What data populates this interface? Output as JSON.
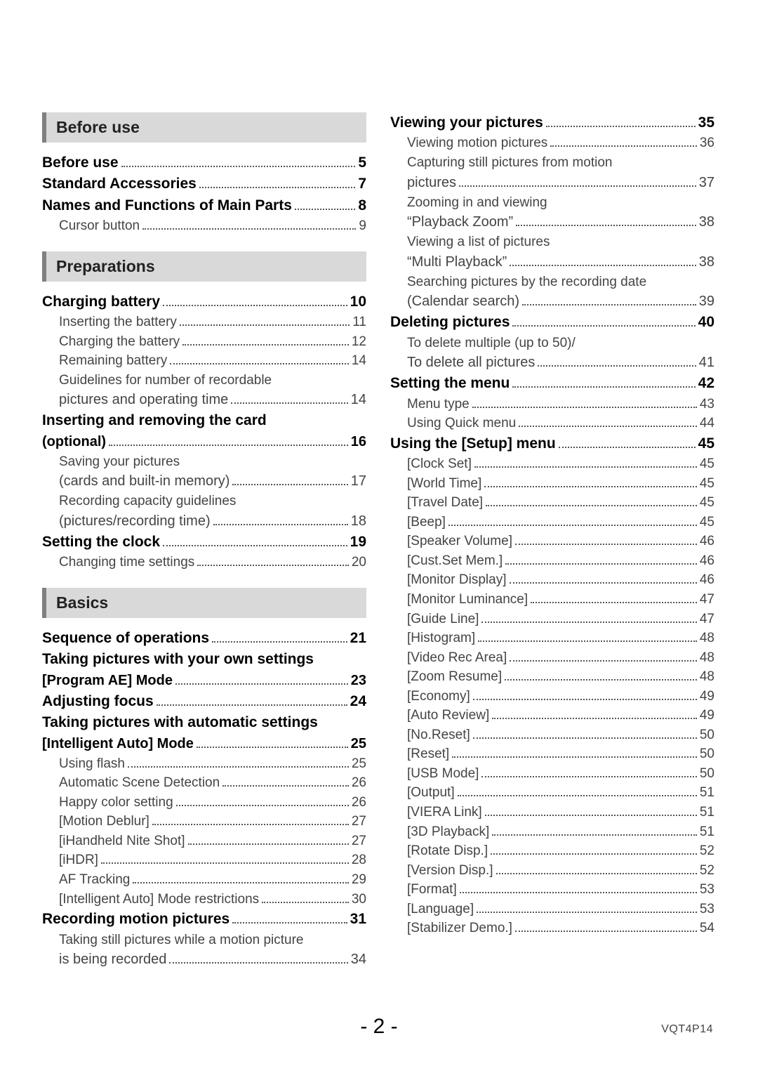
{
  "page_number": "- 2 -",
  "doc_code": "VQT4P14",
  "colors": {
    "section_bg": "#d9d9d9",
    "section_border": "#808080",
    "text": "#000000",
    "subtext": "#444444"
  },
  "columns": [
    {
      "blocks": [
        {
          "type": "header",
          "text": "Before use"
        },
        {
          "type": "major",
          "text": "Before use",
          "page": "5"
        },
        {
          "type": "major",
          "text": "Standard Accessories",
          "page": "7"
        },
        {
          "type": "major",
          "text": "Names and Functions of Main Parts",
          "page": "8"
        },
        {
          "type": "sub",
          "text": "Cursor button",
          "page": "9"
        },
        {
          "type": "header",
          "text": "Preparations"
        },
        {
          "type": "major",
          "text": "Charging battery",
          "page": "10"
        },
        {
          "type": "sub",
          "text": "Inserting the battery",
          "page": "11"
        },
        {
          "type": "sub",
          "text": "Charging the battery",
          "page": "12"
        },
        {
          "type": "sub",
          "text": "Remaining battery",
          "page": "14"
        },
        {
          "type": "sub",
          "text_lines": [
            "Guidelines for number of recordable",
            "pictures and operating time"
          ],
          "page": "14"
        },
        {
          "type": "major",
          "text_lines": [
            "Inserting and removing the card",
            "(optional)"
          ],
          "page": "16"
        },
        {
          "type": "sub",
          "text_lines": [
            "Saving your pictures",
            "(cards and built-in memory)"
          ],
          "page": "17"
        },
        {
          "type": "sub",
          "text_lines": [
            "Recording capacity guidelines",
            "(pictures/recording time)"
          ],
          "page": "18"
        },
        {
          "type": "major",
          "text": "Setting the clock",
          "page": "19"
        },
        {
          "type": "sub",
          "text": "Changing time settings",
          "page": "20"
        },
        {
          "type": "header",
          "text": "Basics"
        },
        {
          "type": "major",
          "text": "Sequence of operations",
          "page": "21"
        },
        {
          "type": "major",
          "text_lines": [
            "Taking pictures with your own settings",
            "[Program AE] Mode"
          ],
          "page": "23"
        },
        {
          "type": "major",
          "text": "Adjusting focus",
          "page": "24"
        },
        {
          "type": "major",
          "text_lines": [
            "Taking pictures with automatic settings",
            "[Intelligent Auto] Mode"
          ],
          "page": "25"
        },
        {
          "type": "sub",
          "text": "Using flash",
          "page": "25"
        },
        {
          "type": "sub",
          "text": "Automatic Scene Detection",
          "page": "26"
        },
        {
          "type": "sub",
          "text": "Happy color setting",
          "page": "26"
        },
        {
          "type": "sub",
          "text": "[Motion Deblur]",
          "page": "27"
        },
        {
          "type": "sub",
          "text": "[iHandheld Nite Shot]",
          "page": "27"
        },
        {
          "type": "sub",
          "text": "[iHDR]",
          "page": "28"
        },
        {
          "type": "sub",
          "text": "AF Tracking",
          "page": "29"
        },
        {
          "type": "sub",
          "text": "[Intelligent Auto] Mode restrictions",
          "page": "30"
        },
        {
          "type": "major",
          "text": "Recording motion pictures",
          "page": "31"
        },
        {
          "type": "sub",
          "text_lines": [
            "Taking still pictures while a motion picture",
            "is being recorded"
          ],
          "page": "34"
        }
      ]
    },
    {
      "blocks": [
        {
          "type": "major",
          "text": "Viewing your pictures",
          "page": "35"
        },
        {
          "type": "sub",
          "text": "Viewing motion pictures",
          "page": "36"
        },
        {
          "type": "sub",
          "text_lines": [
            "Capturing still pictures from motion",
            "pictures"
          ],
          "page": "37"
        },
        {
          "type": "sub",
          "text_lines": [
            "Zooming in and viewing",
            "“Playback Zoom”"
          ],
          "page": "38"
        },
        {
          "type": "sub",
          "text_lines": [
            "Viewing a list of pictures",
            "“Multi Playback”"
          ],
          "page": "38"
        },
        {
          "type": "sub",
          "text_lines": [
            "Searching pictures by the recording date",
            "(Calendar search)"
          ],
          "page": "39"
        },
        {
          "type": "major",
          "text": "Deleting pictures",
          "page": "40"
        },
        {
          "type": "sub",
          "text_lines": [
            "To delete multiple (up to 50)/",
            "To delete all pictures"
          ],
          "page": "41"
        },
        {
          "type": "major",
          "text": "Setting the menu",
          "page": "42"
        },
        {
          "type": "sub",
          "text": "Menu type",
          "page": "43"
        },
        {
          "type": "sub",
          "text": "Using Quick menu",
          "page": "44"
        },
        {
          "type": "major",
          "text": "Using the [Setup] menu",
          "page": "45"
        },
        {
          "type": "sub",
          "text": "[Clock Set]",
          "page": "45"
        },
        {
          "type": "sub",
          "text": "[World Time]",
          "page": "45"
        },
        {
          "type": "sub",
          "text": "[Travel Date]",
          "page": "45"
        },
        {
          "type": "sub",
          "text": "[Beep]",
          "page": "45"
        },
        {
          "type": "sub",
          "text": "[Speaker Volume]",
          "page": "46"
        },
        {
          "type": "sub",
          "text": "[Cust.Set Mem.]",
          "page": "46"
        },
        {
          "type": "sub",
          "text": "[Monitor Display]",
          "page": "46"
        },
        {
          "type": "sub",
          "text": "[Monitor Luminance]",
          "page": "47"
        },
        {
          "type": "sub",
          "text": "[Guide Line]",
          "page": "47"
        },
        {
          "type": "sub",
          "text": "[Histogram]",
          "page": "48"
        },
        {
          "type": "sub",
          "text": "[Video Rec Area]",
          "page": "48"
        },
        {
          "type": "sub",
          "text": "[Zoom Resume]",
          "page": "48"
        },
        {
          "type": "sub",
          "text": "[Economy]",
          "page": "49"
        },
        {
          "type": "sub",
          "text": "[Auto Review]",
          "page": "49"
        },
        {
          "type": "sub",
          "text": "[No.Reset]",
          "page": "50"
        },
        {
          "type": "sub",
          "text": "[Reset]",
          "page": "50"
        },
        {
          "type": "sub",
          "text": "[USB Mode]",
          "page": "50"
        },
        {
          "type": "sub",
          "text": "[Output]",
          "page": "51"
        },
        {
          "type": "sub",
          "text": "[VIERA Link]",
          "page": "51"
        },
        {
          "type": "sub",
          "text": "[3D Playback]",
          "page": "51"
        },
        {
          "type": "sub",
          "text": "[Rotate Disp.]",
          "page": "52"
        },
        {
          "type": "sub",
          "text": "[Version Disp.]",
          "page": "52"
        },
        {
          "type": "sub",
          "text": "[Format]",
          "page": "53"
        },
        {
          "type": "sub",
          "text": "[Language]",
          "page": "53"
        },
        {
          "type": "sub",
          "text": "[Stabilizer Demo.]",
          "page": "54"
        }
      ]
    }
  ]
}
